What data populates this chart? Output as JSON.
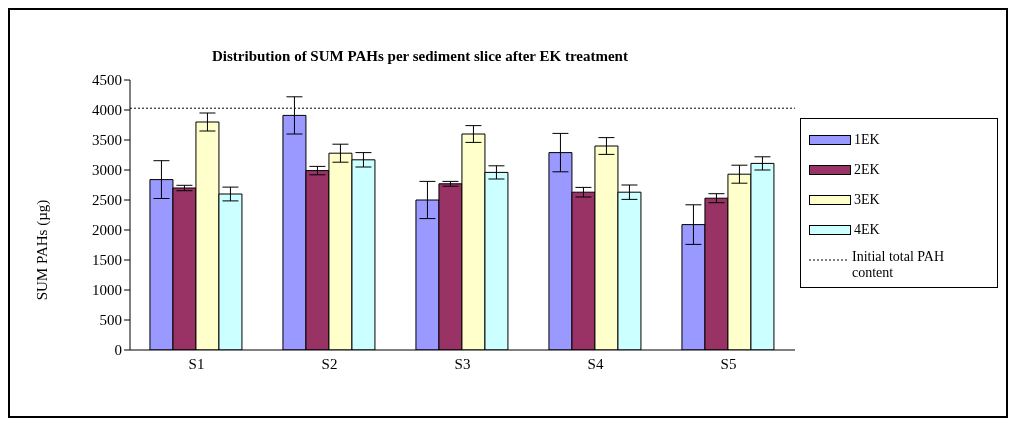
{
  "chart_data": {
    "type": "bar",
    "title": "Distribution of SUM PAHs per sediment slice after EK treatment",
    "ylabel": "SUM PAHs (µg)",
    "categories": [
      "S1",
      "S2",
      "S3",
      "S4",
      "S5"
    ],
    "series": [
      {
        "name": "1EK",
        "color": "#9999ff",
        "values": [
          2840,
          3910,
          2500,
          3290,
          2090
        ],
        "errors": [
          315,
          310,
          310,
          320,
          330
        ]
      },
      {
        "name": "2EK",
        "color": "#993366",
        "values": [
          2700,
          2990,
          2770,
          2630,
          2530
        ],
        "errors": [
          45,
          70,
          40,
          80,
          75
        ]
      },
      {
        "name": "3EK",
        "color": "#ffffcc",
        "values": [
          3800,
          3280,
          3600,
          3400,
          2930
        ],
        "errors": [
          150,
          150,
          140,
          140,
          150
        ]
      },
      {
        "name": "4EK",
        "color": "#ccffff",
        "values": [
          2600,
          3170,
          2960,
          2630,
          3110
        ],
        "errors": [
          115,
          120,
          110,
          120,
          110
        ]
      }
    ],
    "ylim": [
      0,
      4500
    ],
    "yticks": [
      0,
      500,
      1000,
      1500,
      2000,
      2500,
      3000,
      3500,
      4000,
      4500
    ],
    "grid": false,
    "legend": "right",
    "ref_lines": [
      {
        "axis": "y",
        "value": 4030,
        "label": "Initial total PAH content",
        "line_style": "dotted",
        "color": "#000000"
      }
    ]
  }
}
